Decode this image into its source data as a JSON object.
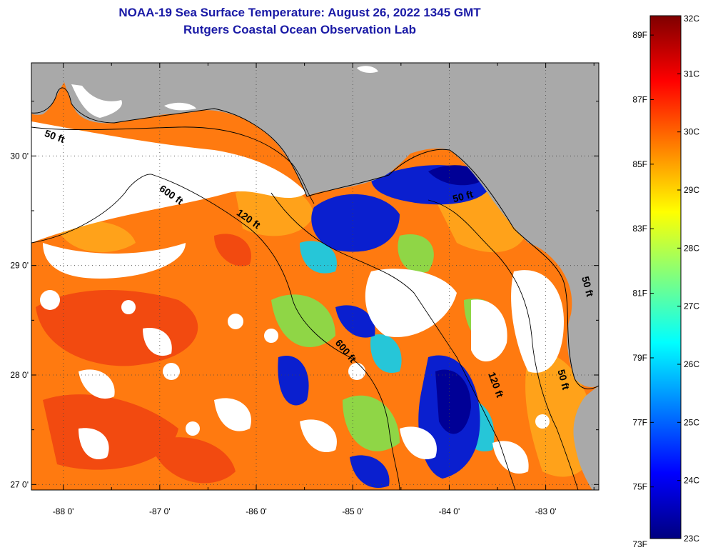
{
  "header": {
    "title_line1": "NOAA-19 Sea Surface Temperature:  August 26, 2022 1345 GMT",
    "title_line2": "Rutgers Coastal Ocean Observation Lab"
  },
  "map": {
    "lon_ticks": [
      {
        "value": -88,
        "label": "-88 0'"
      },
      {
        "value": -87,
        "label": "-87 0'"
      },
      {
        "value": -86,
        "label": "-86 0'"
      },
      {
        "value": -85,
        "label": "-85 0'"
      },
      {
        "value": -84,
        "label": "-84 0'"
      },
      {
        "value": -83,
        "label": "-83 0'"
      }
    ],
    "lat_ticks": [
      {
        "value": 30,
        "label": "30 0'"
      },
      {
        "value": 29,
        "label": "29 0'"
      },
      {
        "value": 28,
        "label": "28 0'"
      },
      {
        "value": 27,
        "label": "27 0'"
      }
    ],
    "lon_range": [
      -88.33,
      -82.45
    ],
    "lat_range": [
      26.95,
      30.85
    ],
    "contour_labels": [
      {
        "text": "50 ft",
        "lon": -88.1,
        "lat": 30.15,
        "angle": 20
      },
      {
        "text": "600 ft",
        "lon": -86.9,
        "lat": 29.62,
        "angle": 35
      },
      {
        "text": "120 ft",
        "lon": -86.1,
        "lat": 29.4,
        "angle": 35
      },
      {
        "text": "50 ft",
        "lon": -83.85,
        "lat": 29.6,
        "angle": -15
      },
      {
        "text": "600 ft",
        "lon": -85.1,
        "lat": 28.2,
        "angle": 50
      },
      {
        "text": "120 ft",
        "lon": -83.55,
        "lat": 27.9,
        "angle": 70
      },
      {
        "text": "50 ft",
        "lon": -82.85,
        "lat": 27.95,
        "angle": 75
      },
      {
        "text": "50 ft",
        "lon": -82.6,
        "lat": 28.8,
        "angle": 75
      }
    ]
  },
  "colorbar": {
    "fahrenheit": [
      "89F",
      "87F",
      "85F",
      "83F",
      "81F",
      "79F",
      "77F",
      "75F",
      "73F"
    ],
    "celsius": [
      "32C",
      "31C",
      "30C",
      "29C",
      "28C",
      "27C",
      "26C",
      "25C",
      "24C",
      "23C"
    ],
    "range_c": [
      23,
      32
    ],
    "colors": [
      "#00007f",
      "#0000ff",
      "#007fff",
      "#00ffff",
      "#7fff7f",
      "#ffff00",
      "#ff7f00",
      "#ff0000",
      "#7f0000"
    ]
  },
  "colors": {
    "land": "#a9a9a9",
    "cloud": "#ffffff",
    "title": "#1a1aa6"
  }
}
